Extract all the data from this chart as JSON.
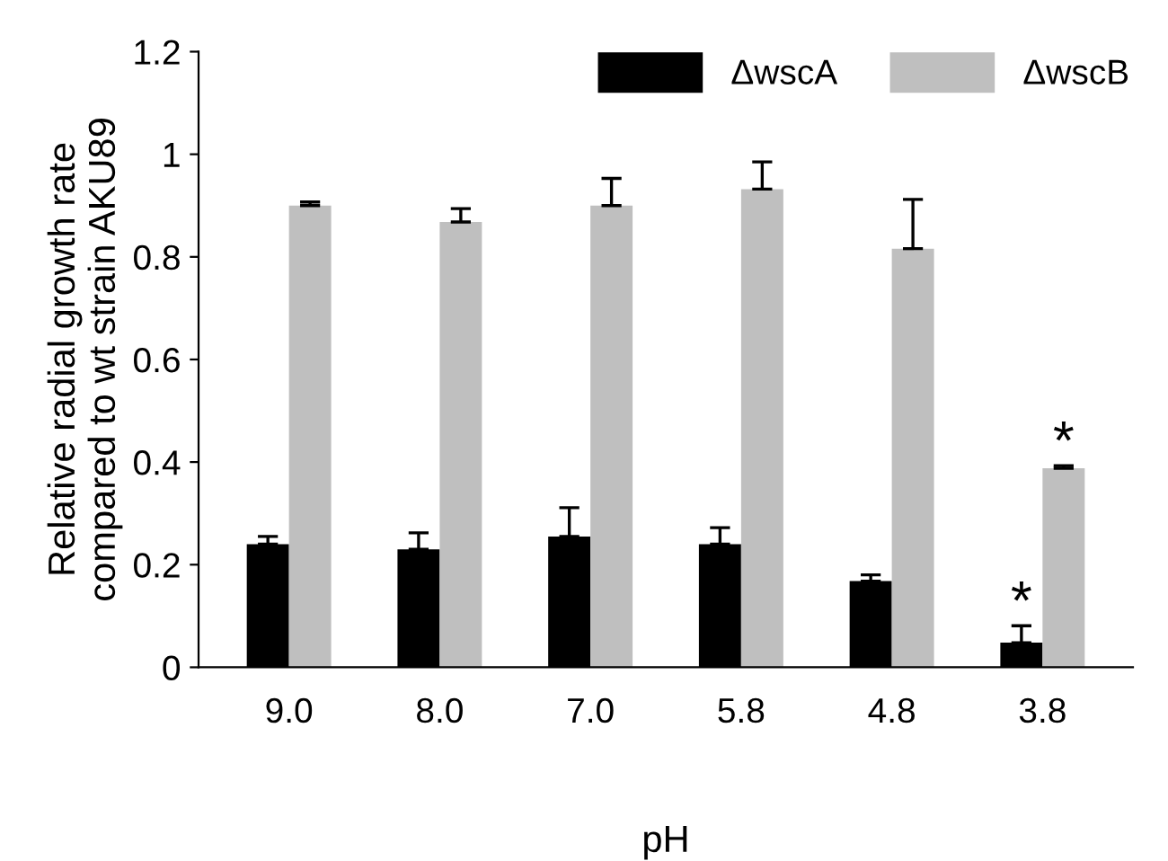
{
  "chart_data": {
    "type": "bar",
    "xlabel": "pH",
    "ylabel": "Relative radial growth rate\ncompared to wt strain AKU89",
    "categories": [
      "9.0",
      "8.0",
      "7.0",
      "5.8",
      "4.8",
      "3.8"
    ],
    "series": [
      {
        "name": "ΔwscA",
        "color": "#000000",
        "values": [
          0.24,
          0.23,
          0.255,
          0.24,
          0.168,
          0.048
        ],
        "errors": [
          [
            0.24,
            0.255
          ],
          [
            0.23,
            0.262
          ],
          [
            0.255,
            0.311
          ],
          [
            0.24,
            0.272
          ],
          [
            0.168,
            0.18
          ],
          [
            0.048,
            0.081
          ]
        ]
      },
      {
        "name": "ΔwscB",
        "color": "#bfbfbf",
        "values": [
          0.9,
          0.868,
          0.9,
          0.932,
          0.816,
          0.388
        ],
        "errors": [
          [
            0.9,
            0.907
          ],
          [
            0.868,
            0.894
          ],
          [
            0.9,
            0.953
          ],
          [
            0.932,
            0.985
          ],
          [
            0.816,
            0.912
          ],
          [
            0.388,
            0.393
          ]
        ]
      }
    ],
    "annotations": [
      {
        "text": "*",
        "x": "3.8",
        "y": 0.081
      },
      {
        "text": "*",
        "x": "3.8",
        "y": 0.393
      }
    ],
    "ylim": [
      0,
      1.2
    ],
    "yticks": [
      0,
      0.2,
      0.4,
      0.6,
      0.8,
      1,
      1.2
    ],
    "grid": false,
    "legend": "top right"
  }
}
